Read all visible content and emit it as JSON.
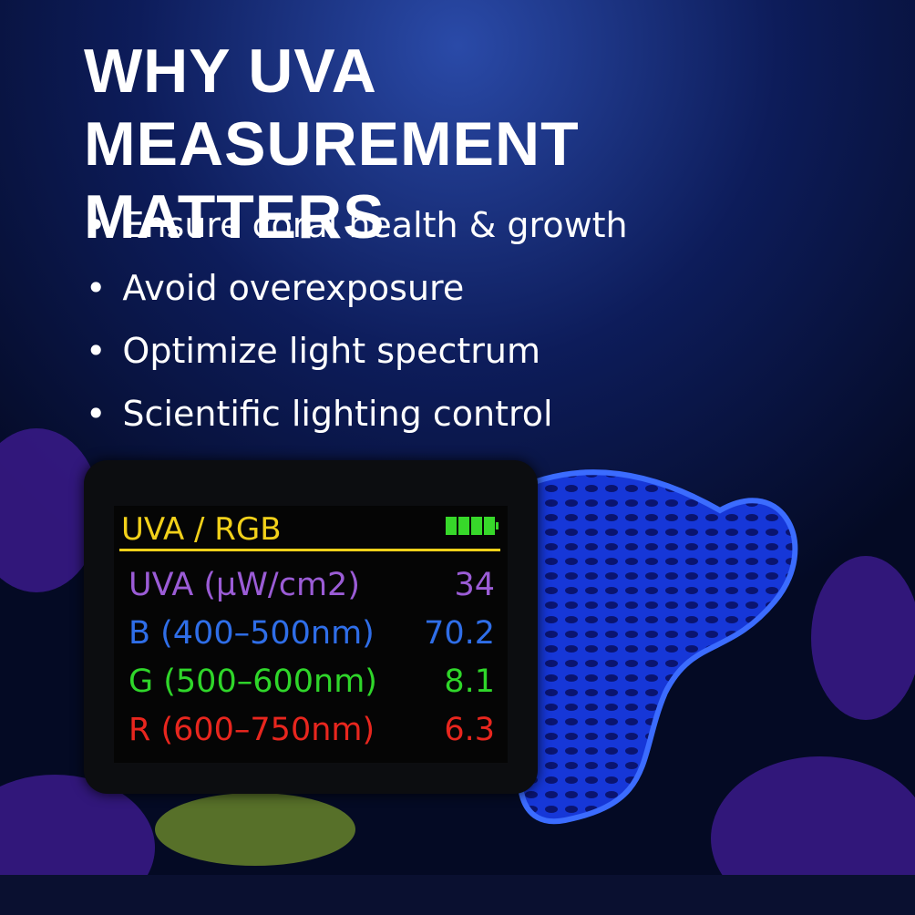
{
  "header": {
    "title": "WHY UVA MEASUREMENT MATTERS"
  },
  "bullets": [
    "Ensure coral health & growth",
    "Avoid overexposure",
    "Optimize light spectrum",
    "Scientific lighting control"
  ],
  "device": {
    "screen_title": "UVA / RGB",
    "rows": [
      {
        "label": "UVA  (µW/cm2)",
        "value": "34",
        "color": "#9b5cd6"
      },
      {
        "label": "B (400–500nm)",
        "value": "70.2",
        "color": "#2f6ee8"
      },
      {
        "label": "G (500–600nm)",
        "value": "8.1",
        "color": "#2fd62a"
      },
      {
        "label": "R (600–750nm)",
        "value": "6.3",
        "color": "#e8261e"
      }
    ]
  }
}
